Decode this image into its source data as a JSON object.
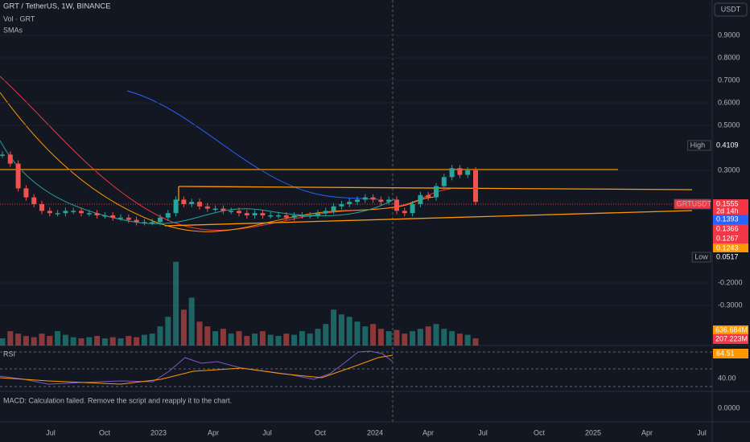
{
  "header": {
    "symbol": "GRT / TetherUS, 1W, BINANCE",
    "volume": "Vol · GRT",
    "smas": "SMAs",
    "currency": "USDT"
  },
  "chart_data": {
    "type": "candlestick",
    "ylim": [
      -0.4786,
      1.0571
    ],
    "yticks": [
      {
        "value": 0.9,
        "label": "0.9000"
      },
      {
        "value": 0.8,
        "label": "0.8000"
      },
      {
        "value": 0.7,
        "label": "0.7000"
      },
      {
        "value": 0.6,
        "label": "0.6000"
      },
      {
        "value": 0.5,
        "label": "0.5000"
      },
      {
        "value": 0.3,
        "label": "0.3000"
      },
      {
        "value": -0.2,
        "label": "-0.2000"
      },
      {
        "value": -0.3,
        "label": "-0.3000"
      }
    ],
    "values": [
      0.37,
      0.33,
      0.22,
      0.18,
      0.15,
      0.12,
      0.11,
      0.11,
      0.12,
      0.12,
      0.11,
      0.11,
      0.1,
      0.1,
      0.09,
      0.09,
      0.08,
      0.07,
      0.07,
      0.07,
      0.09,
      0.11,
      0.17,
      0.15,
      0.16,
      0.14,
      0.13,
      0.13,
      0.12,
      0.12,
      0.11,
      0.1,
      0.11,
      0.1,
      0.1,
      0.1,
      0.09,
      0.1,
      0.1,
      0.1,
      0.11,
      0.12,
      0.14,
      0.15,
      0.16,
      0.17,
      0.18,
      0.17,
      0.16,
      0.17,
      0.12,
      0.11,
      0.15,
      0.19,
      0.18,
      0.23,
      0.27,
      0.31,
      0.28,
      0.3,
      0.16
    ],
    "volume": [
      300,
      600,
      500,
      400,
      350,
      500,
      400,
      600,
      450,
      350,
      300,
      350,
      400,
      300,
      350,
      300,
      400,
      350,
      450,
      500,
      800,
      1200,
      3500,
      1500,
      2000,
      1000,
      800,
      600,
      700,
      500,
      600,
      400,
      500,
      600,
      450,
      400,
      500,
      450,
      600,
      500,
      700,
      900,
      1500,
      1300,
      1200,
      1000,
      800,
      900,
      700,
      600,
      650,
      500,
      600,
      700,
      800,
      900,
      700,
      600,
      500,
      450,
      300
    ],
    "volume_ylim": [
      0,
      5000
    ],
    "up_color": "#26a69a",
    "down_color": "#ef5350"
  },
  "price_tags": [
    {
      "label": "High",
      "text": "0.4109",
      "bg": "#131722"
    },
    {
      "label": "GRTUSDT",
      "text": "0.1555",
      "bg": "#f23645"
    },
    {
      "text": "2d 14h",
      "bg": "#f23645"
    },
    {
      "text": "0.1393",
      "bg": "#2962ff"
    },
    {
      "text": "0.1366",
      "bg": "#f23645"
    },
    {
      "text": "0.1267",
      "bg": "#f23645"
    },
    {
      "text": "0.1243",
      "bg": "#ff9800"
    },
    {
      "label": "Low",
      "text": "0.0517",
      "bg": "#131722"
    }
  ],
  "volume_tags": [
    {
      "text": "636.684M",
      "bg": "#ff9800"
    },
    {
      "text": "207.223M",
      "bg": "#f23645"
    }
  ],
  "rsi": {
    "title": "RSI",
    "value": "64.51",
    "level": "40.00"
  },
  "macd": {
    "message": "MACD: Calculation failed. Remove the script and reapply it to the chart.",
    "zero": "0.0000"
  },
  "time_axis": [
    "Jul",
    "Oct",
    "2023",
    "Apr",
    "Jul",
    "Oct",
    "2024",
    "Apr",
    "Jul",
    "Oct",
    "2025",
    "Apr",
    "Jul"
  ]
}
